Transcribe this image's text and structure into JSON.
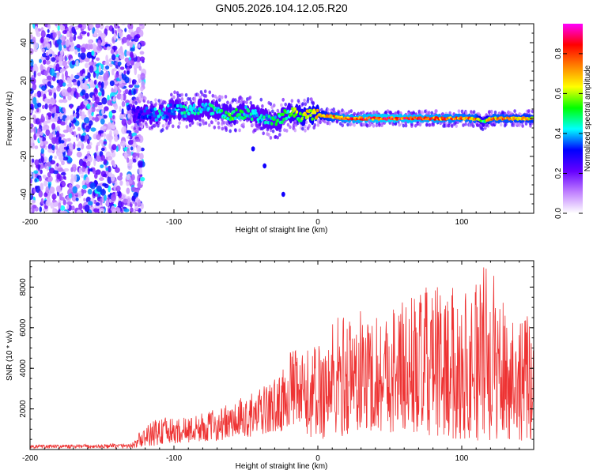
{
  "title": "GN05.2026.104.12.05.R20",
  "chart_data": [
    {
      "type": "heatmap",
      "xlabel": "Height of straight line (km)",
      "ylabel": "Frequency (Hz)",
      "xlim": [
        -200,
        150
      ],
      "ylim": [
        -50,
        50
      ],
      "xticks": [
        -200,
        -100,
        0,
        100
      ],
      "yticks": [
        -40,
        -20,
        0,
        20,
        40
      ],
      "colorbar": {
        "label": "Normalized spectral amplitude",
        "range": [
          0,
          0.95
        ],
        "ticks": [
          0.0,
          0.2,
          0.4,
          0.6,
          0.8
        ],
        "colors": [
          "#ffffff",
          "#c080ff",
          "#6600ff",
          "#0000ff",
          "#00ffff",
          "#00ff00",
          "#ffff00",
          "#ff8000",
          "#ff0000",
          "#ff00ff"
        ]
      },
      "noise_region_km": [
        -200,
        -125
      ],
      "ridge": {
        "description": "Main spectral ridge near 0 Hz",
        "x": [
          -125,
          -110,
          -100,
          -90,
          -80,
          -70,
          -60,
          -50,
          -40,
          -30,
          -20,
          -10,
          0,
          20,
          50,
          80,
          110,
          115,
          120,
          150
        ],
        "freq": [
          3,
          2,
          5,
          3,
          6,
          4,
          2,
          3,
          1,
          -2,
          3,
          1,
          2,
          0,
          0,
          0,
          0,
          -2,
          0,
          0
        ],
        "amplitude": [
          0.3,
          0.45,
          0.4,
          0.5,
          0.45,
          0.5,
          0.55,
          0.5,
          0.45,
          0.5,
          0.55,
          0.65,
          0.7,
          0.85,
          0.9,
          0.85,
          0.8,
          0.55,
          0.8,
          0.75
        ]
      },
      "stray_points": [
        {
          "x": -45,
          "freq": -16
        },
        {
          "x": -37,
          "freq": -25
        },
        {
          "x": -24,
          "freq": -40
        }
      ]
    },
    {
      "type": "line",
      "xlabel": "Height of straight line (km)",
      "ylabel": "SNR (10 * v/v)",
      "xlim": [
        -200,
        150
      ],
      "ylim": [
        0,
        9300
      ],
      "xticks": [
        -200,
        -100,
        0,
        100
      ],
      "yticks": [
        2000,
        4000,
        6000,
        8000
      ],
      "series": [
        {
          "name": "SNR",
          "color": "#ee3333",
          "envelope_x": [
            -200,
            -150,
            -130,
            -125,
            -110,
            -100,
            -80,
            -60,
            -40,
            -25,
            -20,
            -10,
            0,
            10,
            25,
            40,
            60,
            80,
            100,
            118,
            130,
            150
          ],
          "envelope_upper": [
            350,
            400,
            500,
            800,
            1700,
            1500,
            1800,
            2300,
            3000,
            3800,
            5000,
            4800,
            5400,
            6600,
            7000,
            6800,
            7600,
            8100,
            7900,
            9300,
            7500,
            6300
          ],
          "envelope_lower": [
            50,
            50,
            50,
            100,
            200,
            300,
            400,
            500,
            700,
            900,
            1200,
            700,
            500,
            500,
            800,
            900,
            800,
            600,
            500,
            400,
            500,
            400
          ]
        }
      ]
    }
  ]
}
